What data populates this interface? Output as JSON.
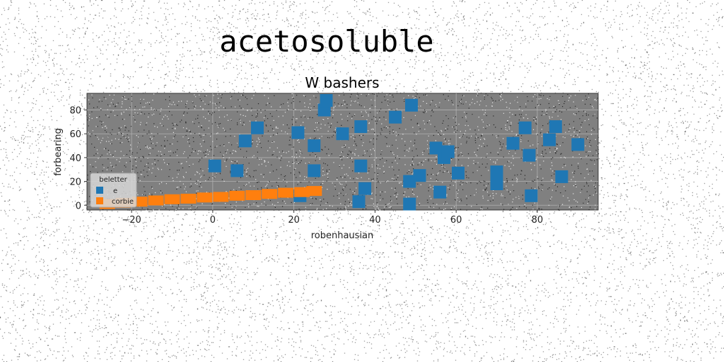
{
  "page": {
    "title": "acetosoluble"
  },
  "chart_data": {
    "type": "scatter",
    "title": "W bashers",
    "xlabel": "robenhausian",
    "ylabel": "forbearing",
    "xlim": [
      -31,
      95
    ],
    "ylim": [
      -4,
      94
    ],
    "xticks": [
      -20,
      0,
      20,
      40,
      60,
      80
    ],
    "yticks": [
      0,
      20,
      40,
      60,
      80
    ],
    "grid": true,
    "legend": {
      "title": "beletter",
      "placement": "lower-left"
    },
    "background_color": "#808080",
    "series": [
      {
        "name": "e",
        "color": "#1f77b4",
        "marker": "square",
        "points": [
          [
            27.5,
            80
          ],
          [
            28,
            88
          ],
          [
            49,
            84
          ],
          [
            45,
            74
          ],
          [
            11,
            65
          ],
          [
            21,
            61
          ],
          [
            8,
            54
          ],
          [
            25,
            50
          ],
          [
            32,
            60
          ],
          [
            36.5,
            66
          ],
          [
            0.5,
            33
          ],
          [
            6,
            29
          ],
          [
            25,
            29
          ],
          [
            36.5,
            33
          ],
          [
            37.5,
            14
          ],
          [
            21.5,
            8
          ],
          [
            36,
            3
          ],
          [
            48.5,
            1
          ],
          [
            48.5,
            20
          ],
          [
            51,
            25
          ],
          [
            55,
            48
          ],
          [
            57,
            40
          ],
          [
            58,
            45
          ],
          [
            60.5,
            27
          ],
          [
            56,
            11
          ],
          [
            70,
            28
          ],
          [
            70,
            18
          ],
          [
            74,
            52
          ],
          [
            77,
            65
          ],
          [
            78,
            42
          ],
          [
            78.5,
            8
          ],
          [
            83,
            55
          ],
          [
            84.5,
            66
          ],
          [
            86,
            24
          ],
          [
            90,
            51
          ]
        ]
      },
      {
        "name": "corbie",
        "color": "#ff7f0e",
        "marker": "square",
        "points": [
          [
            -26,
            1
          ],
          [
            -22,
            2
          ],
          [
            -18,
            3
          ],
          [
            -14,
            4
          ],
          [
            -10,
            5
          ],
          [
            -6,
            5.5
          ],
          [
            -2,
            6.5
          ],
          [
            2,
            7
          ],
          [
            6,
            8
          ],
          [
            10,
            8.5
          ],
          [
            14,
            9.5
          ],
          [
            18,
            10.5
          ],
          [
            22,
            11
          ],
          [
            25,
            12
          ]
        ]
      }
    ]
  }
}
